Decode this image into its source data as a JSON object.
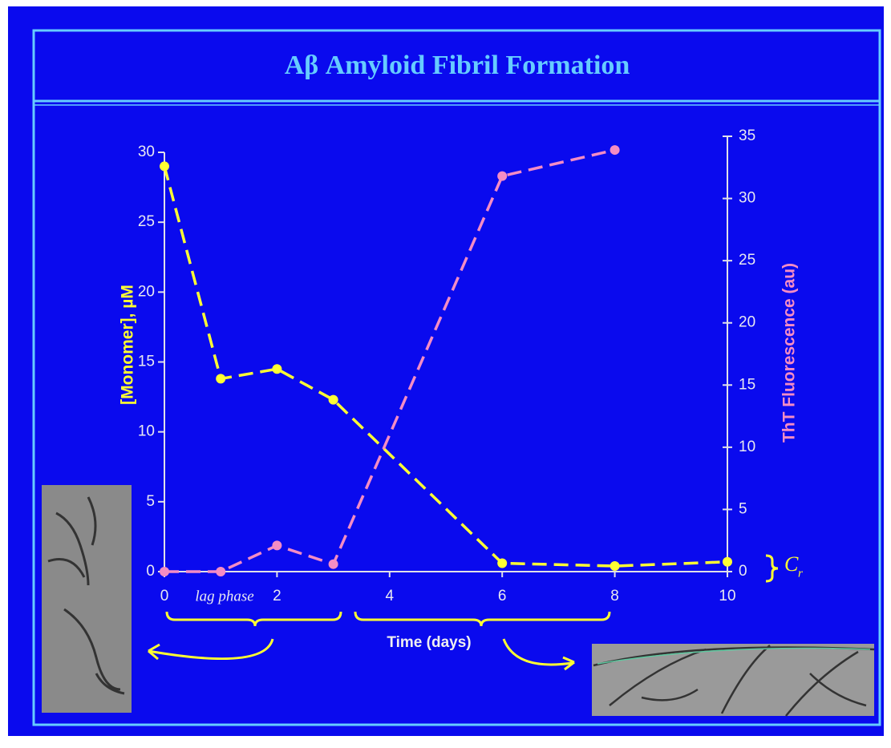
{
  "chart_data": {
    "type": "line",
    "title": "Aβ Amyloid Fibril Formation",
    "x_label": "Time (days)",
    "y_label": "[Monomer], µM",
    "y2_label": "ThT Fluorescence (au)",
    "annotation": "lag phase",
    "threshold_label": "C",
    "threshold_subscript": "r",
    "x": [
      0,
      1,
      2,
      3,
      6,
      8,
      10
    ],
    "series": [
      {
        "name": "[Monomer], µM",
        "color": "#ffff33",
        "values": [
          29,
          13.8,
          14.5,
          12.3,
          0.6,
          0.4,
          0.7
        ]
      },
      {
        "name": "ThT Fluorescence (au)",
        "color": "#f48cc4",
        "axis": "y2",
        "values": [
          0,
          0,
          2.1,
          0.6,
          31.8,
          33.9,
          null
        ]
      }
    ],
    "xlim": [
      0,
      10
    ],
    "xticks": [
      0,
      2,
      4,
      6,
      8,
      10
    ],
    "ylim": [
      0,
      30
    ],
    "yticks": [
      0,
      5,
      10,
      15,
      20,
      25,
      30
    ],
    "y2lim": [
      0,
      35
    ],
    "y2ticks": [
      0,
      5,
      10,
      15,
      20,
      25,
      30,
      35
    ],
    "grid": false
  }
}
